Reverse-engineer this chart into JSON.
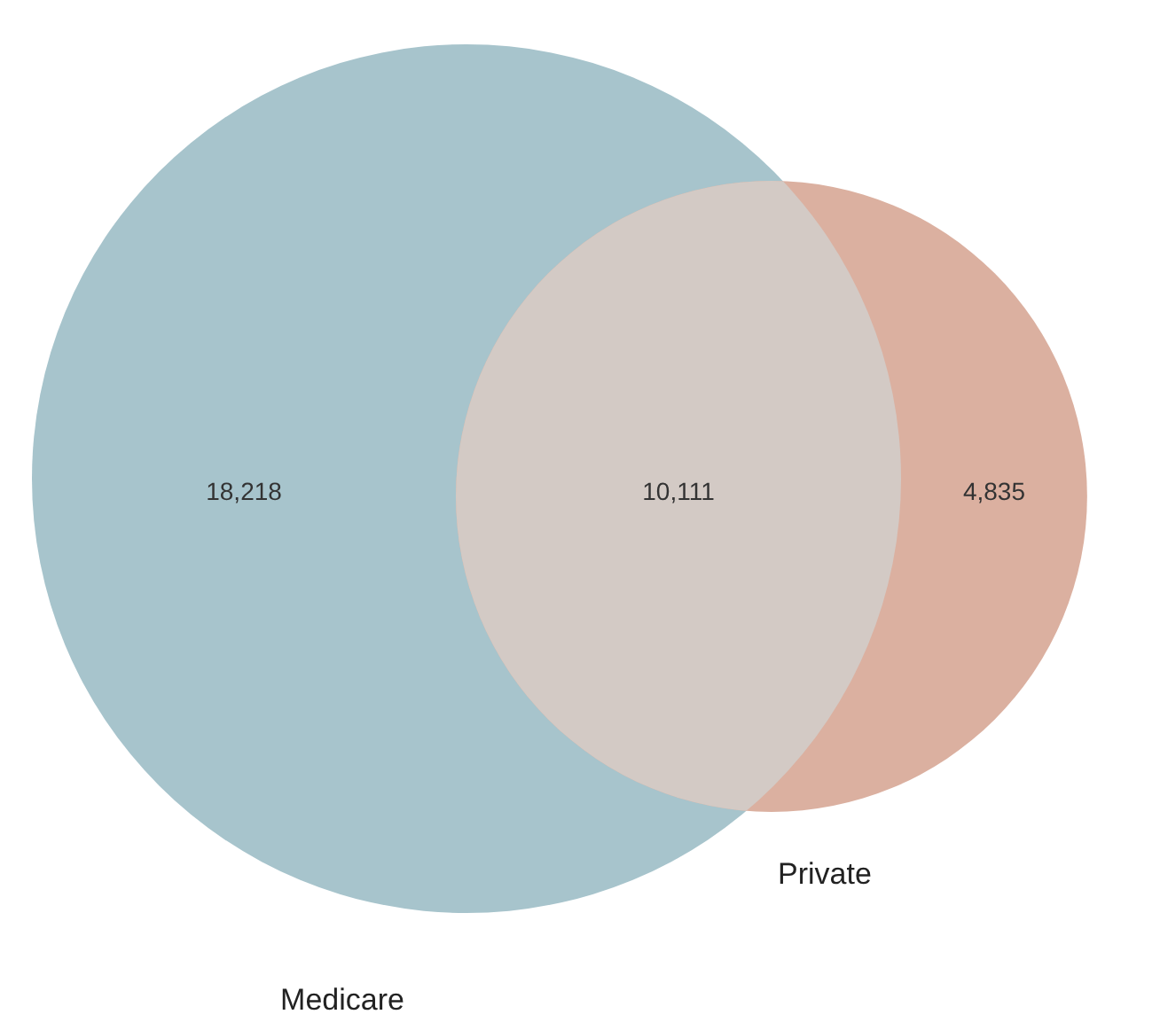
{
  "chart_data": {
    "type": "other",
    "categories": [
      null,
      null,
      null
    ],
    "values": [
      18218,
      10111,
      4835
    ],
    "value_labels": [
      "18,218",
      "10,111",
      "4,835"
    ],
    "colors": [
      "#a7c4cc",
      "#d3cac5",
      "#dbb0a0"
    ],
    "annotations": [
      "Medicare",
      "Private"
    ]
  }
}
